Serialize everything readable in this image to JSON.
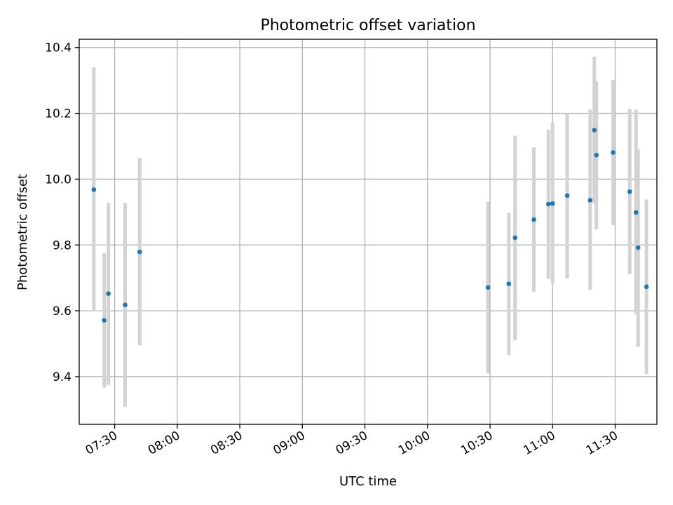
{
  "chart_data": {
    "type": "scatter",
    "title": "Photometric offset variation",
    "xlabel": "UTC time",
    "ylabel": "Photometric offset",
    "x_axis_type": "time",
    "xlim": [
      "07:13",
      "11:50"
    ],
    "ylim": [
      9.255,
      10.425
    ],
    "xticks": [
      "07:30",
      "08:00",
      "08:30",
      "09:00",
      "09:30",
      "10:00",
      "10:30",
      "11:00",
      "11:30"
    ],
    "yticks": [
      9.4,
      9.6,
      9.8,
      10.0,
      10.2,
      10.4
    ],
    "ytick_labels": [
      "9.4",
      "9.6",
      "9.8",
      "10.0",
      "10.2",
      "10.4"
    ],
    "grid": true,
    "marker_color": "#1f77b4",
    "errorbar_color": "#d3d3d3",
    "points": [
      {
        "x": "07:20",
        "y": 9.968,
        "ylo": 9.598,
        "yhi": 10.34
      },
      {
        "x": "07:25",
        "y": 9.571,
        "ylo": 9.367,
        "yhi": 9.775
      },
      {
        "x": "07:27",
        "y": 9.652,
        "ylo": 9.375,
        "yhi": 9.928
      },
      {
        "x": "07:35",
        "y": 9.618,
        "ylo": 9.308,
        "yhi": 9.928
      },
      {
        "x": "07:42",
        "y": 9.779,
        "ylo": 9.495,
        "yhi": 10.065
      },
      {
        "x": "10:29",
        "y": 9.671,
        "ylo": 9.41,
        "yhi": 9.932
      },
      {
        "x": "10:39",
        "y": 9.682,
        "ylo": 9.465,
        "yhi": 9.898
      },
      {
        "x": "10:42",
        "y": 9.822,
        "ylo": 9.51,
        "yhi": 10.132
      },
      {
        "x": "10:51",
        "y": 9.877,
        "ylo": 9.658,
        "yhi": 10.097
      },
      {
        "x": "10:58",
        "y": 9.924,
        "ylo": 9.697,
        "yhi": 10.151
      },
      {
        "x": "11:00",
        "y": 9.926,
        "ylo": 9.682,
        "yhi": 10.171
      },
      {
        "x": "11:07",
        "y": 9.95,
        "ylo": 9.698,
        "yhi": 10.2
      },
      {
        "x": "11:18",
        "y": 9.936,
        "ylo": 9.663,
        "yhi": 10.211
      },
      {
        "x": "11:20",
        "y": 10.149,
        "ylo": 9.926,
        "yhi": 10.372
      },
      {
        "x": "11:21",
        "y": 10.073,
        "ylo": 9.848,
        "yhi": 10.297
      },
      {
        "x": "11:29",
        "y": 10.081,
        "ylo": 9.86,
        "yhi": 10.302
      },
      {
        "x": "11:37",
        "y": 9.962,
        "ylo": 9.712,
        "yhi": 10.213
      },
      {
        "x": "11:40",
        "y": 9.899,
        "ylo": 9.589,
        "yhi": 10.211
      },
      {
        "x": "11:41",
        "y": 9.792,
        "ylo": 9.49,
        "yhi": 10.092
      },
      {
        "x": "11:45",
        "y": 9.673,
        "ylo": 9.408,
        "yhi": 9.938
      }
    ]
  }
}
